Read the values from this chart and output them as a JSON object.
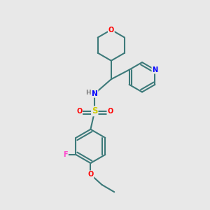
{
  "background_color": "#e8e8e8",
  "bond_color": "#3d7a7a",
  "bond_width": 1.5,
  "figsize": [
    3.0,
    3.0
  ],
  "dpi": 100,
  "atom_colors": {
    "O": "#ff0000",
    "N": "#0000ff",
    "S": "#cccc00",
    "F": "#ff44cc",
    "C": "#3d7a7a",
    "H": "#808080"
  }
}
